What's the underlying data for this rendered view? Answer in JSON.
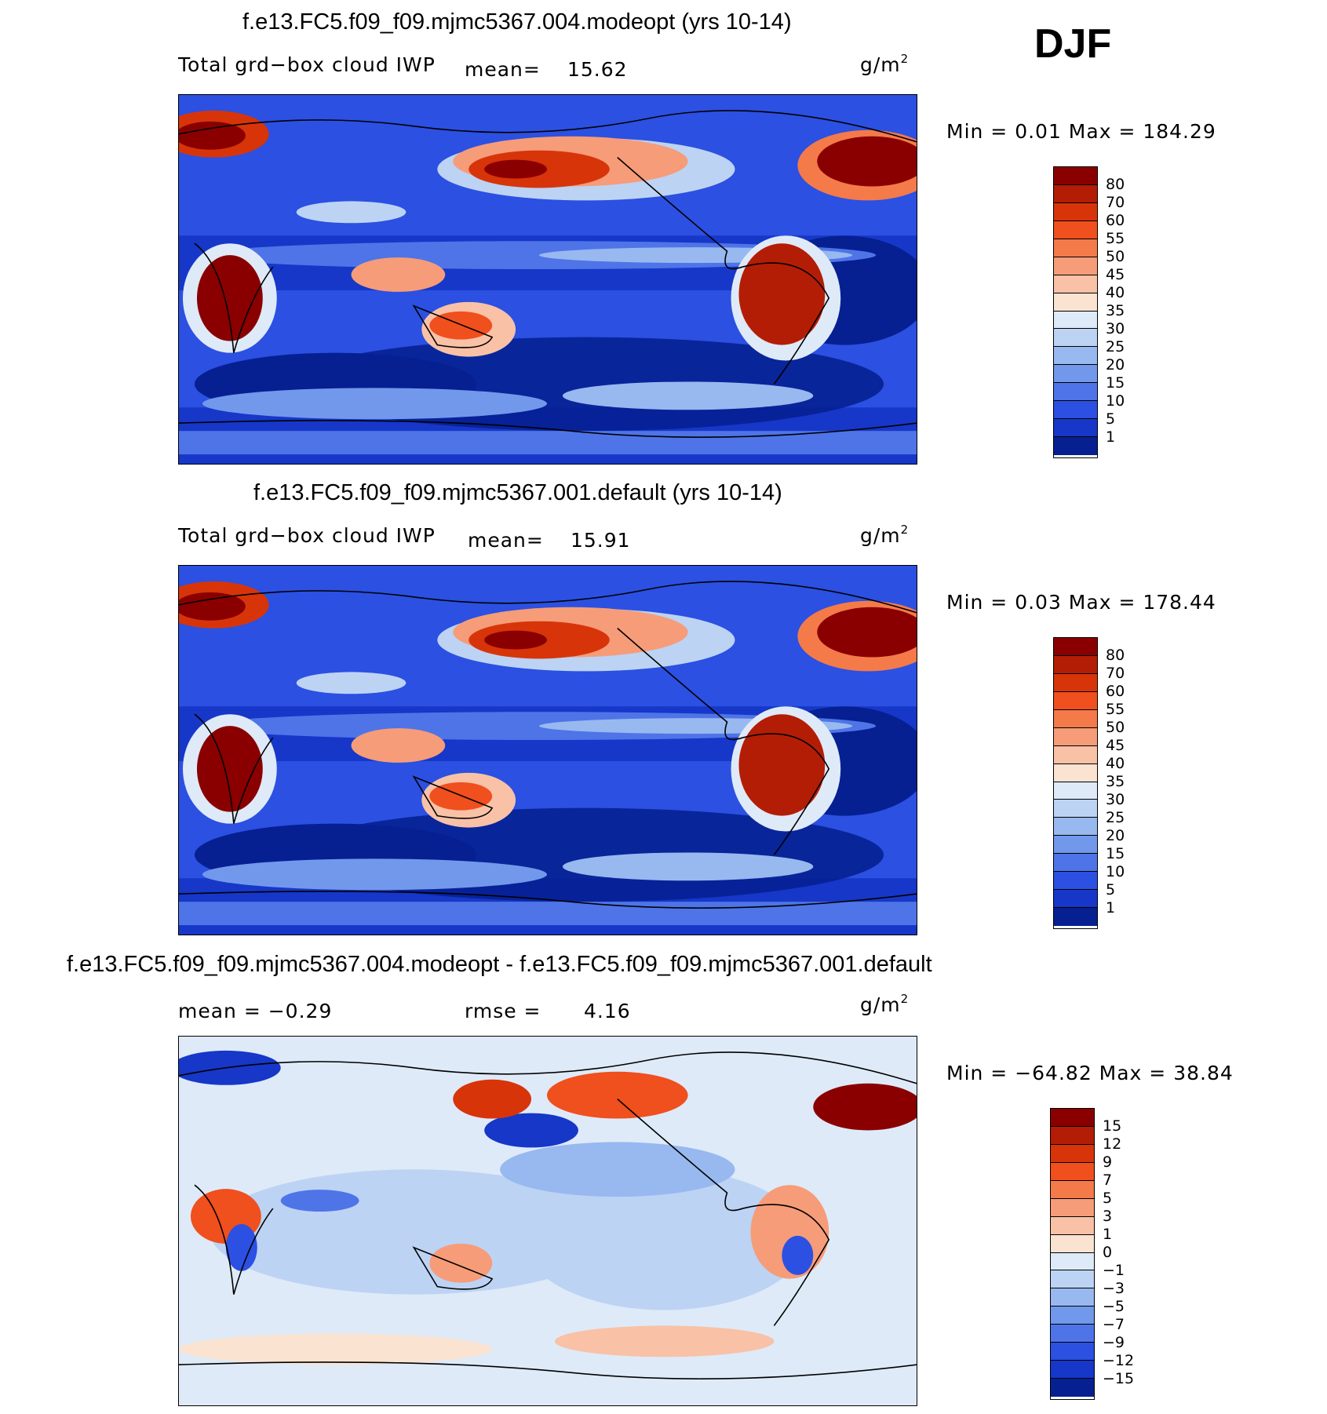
{
  "season": "DJF",
  "units_base": "g/m",
  "units_sup": "2",
  "panels": [
    {
      "title": "f.e13.FC5.f09_f09.mjmc5367.004.modeopt (yrs 10-14)",
      "left_label": "Total grd−box cloud IWP",
      "stat1_label": "mean=",
      "stat1_value": "15.62",
      "minmax": "Min =    0.01  Max  =  184.29",
      "colorbar": {
        "labels": [
          "80",
          "70",
          "60",
          "55",
          "50",
          "45",
          "40",
          "35",
          "30",
          "25",
          "20",
          "15",
          "10",
          "5",
          "1"
        ],
        "colors": [
          "#8a0000",
          "#b41d05",
          "#d8340a",
          "#f04f1e",
          "#f47a4a",
          "#f69c78",
          "#f9c1a6",
          "#fbe3d2",
          "#deeaf8",
          "#bcd3f4",
          "#98b8f0",
          "#7298ec",
          "#4e74e8",
          "#2b50e2",
          "#1637c8",
          "#062092"
        ]
      }
    },
    {
      "title": "f.e13.FC5.f09_f09.mjmc5367.001.default (yrs 10-14)",
      "left_label": "Total grd−box cloud IWP",
      "stat1_label": "mean=",
      "stat1_value": "15.91",
      "minmax": "Min =    0.03  Max  =  178.44",
      "colorbar": {
        "labels": [
          "80",
          "70",
          "60",
          "55",
          "50",
          "45",
          "40",
          "35",
          "30",
          "25",
          "20",
          "15",
          "10",
          "5",
          "1"
        ],
        "colors": [
          "#8a0000",
          "#b41d05",
          "#d8340a",
          "#f04f1e",
          "#f47a4a",
          "#f69c78",
          "#f9c1a6",
          "#fbe3d2",
          "#deeaf8",
          "#bcd3f4",
          "#98b8f0",
          "#7298ec",
          "#4e74e8",
          "#2b50e2",
          "#1637c8",
          "#062092"
        ]
      }
    },
    {
      "title": "f.e13.FC5.f09_f09.mjmc5367.004.modeopt - f.e13.FC5.f09_f09.mjmc5367.001.default",
      "left_label": "mean  =   −0.29",
      "stat1_label": "rmse  =",
      "stat1_value": "4.16",
      "minmax": "Min  = −64.82  Max  =    38.84",
      "colorbar": {
        "labels": [
          "15",
          "12",
          "9",
          "7",
          "5",
          "3",
          "1",
          "0",
          "−1",
          "−3",
          "−5",
          "−7",
          "−9",
          "−12",
          "−15"
        ],
        "colors": [
          "#8a0000",
          "#b41d05",
          "#d8340a",
          "#f04f1e",
          "#f47a4a",
          "#f69c78",
          "#f9c1a6",
          "#fbe3d2",
          "#deeaf8",
          "#bcd3f4",
          "#98b8f0",
          "#7298ec",
          "#4e74e8",
          "#2b50e2",
          "#1637c8",
          "#062092"
        ]
      }
    }
  ],
  "chart_data": [
    {
      "type": "heatmap",
      "title": "f.e13.FC5.f09_f09.mjmc5367.004.modeopt (yrs 10-14)",
      "variable": "Total grd−box cloud IWP",
      "units": "g/m2",
      "mean": 15.62,
      "min": 0.01,
      "max": 184.29,
      "contour_levels": [
        1,
        5,
        10,
        15,
        20,
        25,
        30,
        35,
        40,
        45,
        50,
        55,
        60,
        70,
        80
      ]
    },
    {
      "type": "heatmap",
      "title": "f.e13.FC5.f09_f09.mjmc5367.001.default (yrs 10-14)",
      "variable": "Total grd−box cloud IWP",
      "units": "g/m2",
      "mean": 15.91,
      "min": 0.03,
      "max": 178.44,
      "contour_levels": [
        1,
        5,
        10,
        15,
        20,
        25,
        30,
        35,
        40,
        45,
        50,
        55,
        60,
        70,
        80
      ]
    },
    {
      "type": "heatmap",
      "title": "f.e13.FC5.f09_f09.mjmc5367.004.modeopt - f.e13.FC5.f09_f09.mjmc5367.001.default",
      "units": "g/m2",
      "mean": -0.29,
      "rmse": 4.16,
      "min": -64.82,
      "max": 38.84,
      "contour_levels": [
        -15,
        -12,
        -9,
        -7,
        -5,
        -3,
        -1,
        0,
        1,
        3,
        5,
        7,
        9,
        12,
        15
      ]
    }
  ]
}
